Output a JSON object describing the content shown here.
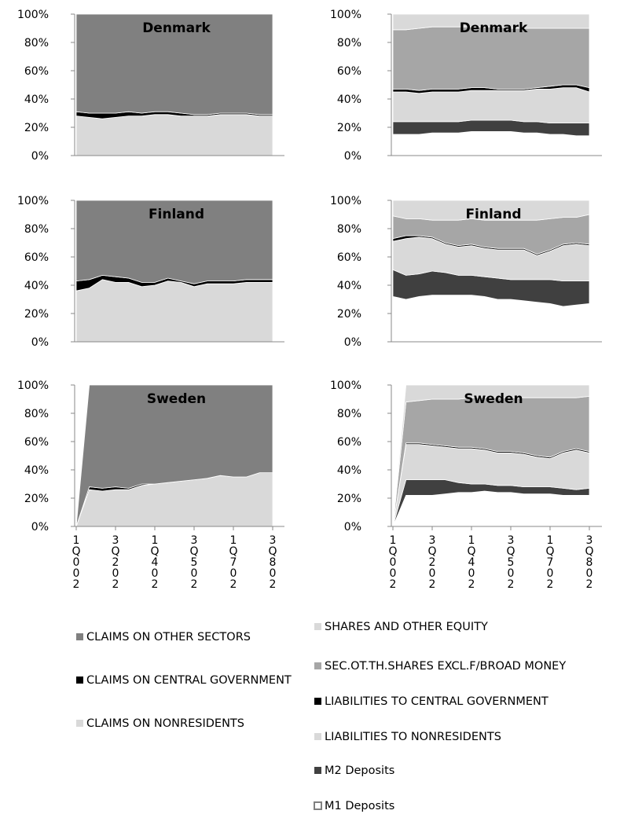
{
  "chart_data": [
    {
      "type": "area",
      "title": "Denmark",
      "ylim": [
        0,
        100
      ],
      "yticks": [
        {
          "value": 0,
          "label": "0%"
        },
        {
          "value": 20,
          "label": "20%"
        },
        {
          "value": 40,
          "label": "40%"
        },
        {
          "value": 60,
          "label": "60%"
        },
        {
          "value": 80,
          "label": "80%"
        },
        {
          "value": 100,
          "label": "100%"
        }
      ],
      "series": [
        {
          "values": [
            28,
            27,
            26,
            27,
            28,
            28,
            29,
            29,
            28,
            28,
            28,
            29,
            29,
            29,
            28,
            28
          ]
        },
        {
          "values": [
            3,
            3,
            4,
            3,
            3,
            2,
            2,
            2,
            2,
            1,
            1,
            1,
            1,
            1,
            1,
            1
          ]
        },
        {
          "values": [
            69,
            70,
            70,
            70,
            69,
            70,
            69,
            69,
            70,
            71,
            71,
            70,
            70,
            70,
            71,
            71
          ]
        }
      ]
    },
    {
      "type": "area",
      "title": "Denmark",
      "ylim": [
        0,
        100
      ],
      "yticks": [
        {
          "value": 0,
          "label": "0%"
        },
        {
          "value": 20,
          "label": "20%"
        },
        {
          "value": 40,
          "label": "40%"
        },
        {
          "value": 60,
          "label": "60%"
        },
        {
          "value": 80,
          "label": "80%"
        },
        {
          "value": 100,
          "label": "100%"
        }
      ],
      "series": [
        {
          "values": [
            15,
            15,
            15,
            16,
            16,
            16,
            17,
            17,
            17,
            17,
            16,
            16,
            15,
            15,
            14,
            14
          ]
        },
        {
          "values": [
            9,
            9,
            9,
            8,
            8,
            8,
            8,
            8,
            8,
            8,
            8,
            8,
            8,
            8,
            9,
            9
          ]
        },
        {
          "values": [
            21,
            21,
            20,
            21,
            21,
            21,
            21,
            21,
            21,
            21,
            22,
            23,
            24,
            25,
            25,
            22
          ]
        },
        {
          "values": [
            2,
            2,
            2,
            2,
            2,
            2,
            2,
            2,
            1,
            1,
            1,
            1,
            2,
            2,
            2,
            3
          ]
        },
        {
          "values": [
            42,
            42,
            44,
            44,
            44,
            44,
            43,
            43,
            44,
            43,
            43,
            42,
            41,
            40,
            40,
            42
          ]
        },
        {
          "values": [
            11,
            11,
            10,
            9,
            9,
            9,
            9,
            9,
            9,
            10,
            10,
            10,
            10,
            10,
            10,
            10
          ]
        }
      ]
    },
    {
      "type": "area",
      "title": "Finland",
      "ylim": [
        0,
        100
      ],
      "yticks": [
        {
          "value": 0,
          "label": "0%"
        },
        {
          "value": 20,
          "label": "20%"
        },
        {
          "value": 40,
          "label": "40%"
        },
        {
          "value": 60,
          "label": "60%"
        },
        {
          "value": 80,
          "label": "80%"
        },
        {
          "value": 100,
          "label": "100%"
        }
      ],
      "series": [
        {
          "values": [
            36,
            38,
            44,
            42,
            42,
            39,
            40,
            43,
            42,
            39,
            41,
            41,
            41,
            42,
            42,
            42
          ]
        },
        {
          "values": [
            7,
            6,
            3,
            4,
            3,
            3,
            2,
            2,
            1,
            2,
            2,
            2,
            2,
            2,
            2,
            2
          ]
        },
        {
          "values": [
            57,
            56,
            53,
            54,
            55,
            58,
            58,
            55,
            57,
            59,
            57,
            57,
            57,
            56,
            56,
            56
          ]
        }
      ]
    },
    {
      "type": "area",
      "title": "Finland",
      "ylim": [
        0,
        100
      ],
      "yticks": [
        {
          "value": 0,
          "label": "0%"
        },
        {
          "value": 20,
          "label": "20%"
        },
        {
          "value": 40,
          "label": "40%"
        },
        {
          "value": 60,
          "label": "60%"
        },
        {
          "value": 80,
          "label": "80%"
        },
        {
          "value": 100,
          "label": "100%"
        }
      ],
      "series": [
        {
          "values": [
            32,
            30,
            32,
            33,
            33,
            33,
            33,
            32,
            30,
            30,
            29,
            28,
            27,
            25,
            26,
            27
          ]
        },
        {
          "values": [
            19,
            17,
            16,
            17,
            16,
            14,
            14,
            14,
            15,
            14,
            15,
            16,
            17,
            18,
            17,
            16
          ]
        },
        {
          "values": [
            20,
            26,
            26,
            23,
            20,
            20,
            21,
            20,
            20,
            21,
            21,
            17,
            20,
            25,
            26,
            25
          ]
        },
        {
          "values": [
            2,
            2,
            1,
            1,
            1,
            1,
            1,
            1,
            1,
            1,
            1,
            1,
            1,
            1,
            1,
            1
          ]
        },
        {
          "values": [
            16,
            12,
            12,
            12,
            16,
            18,
            18,
            19,
            20,
            20,
            20,
            24,
            22,
            19,
            18,
            21
          ]
        },
        {
          "values": [
            11,
            13,
            13,
            14,
            14,
            14,
            13,
            14,
            14,
            14,
            14,
            14,
            13,
            12,
            12,
            10
          ]
        }
      ]
    },
    {
      "type": "area",
      "title": "Sweden",
      "ylim": [
        0,
        100
      ],
      "yticks": [
        {
          "value": 0,
          "label": "0%"
        },
        {
          "value": 20,
          "label": "20%"
        },
        {
          "value": 40,
          "label": "40%"
        },
        {
          "value": 60,
          "label": "60%"
        },
        {
          "value": 80,
          "label": "80%"
        },
        {
          "value": 100,
          "label": "100%"
        }
      ],
      "categories": [
        "1Q002",
        null,
        null,
        "3Q202",
        null,
        null,
        "1Q402",
        null,
        null,
        "3Q502",
        null,
        null,
        "1Q702",
        null,
        null,
        "3Q802"
      ],
      "series": [
        {
          "values": [
            0,
            26,
            25,
            26,
            26,
            29,
            30,
            31,
            32,
            33,
            34,
            36,
            35,
            35,
            38,
            38
          ]
        },
        {
          "values": [
            0,
            2,
            2,
            2,
            1,
            1,
            0,
            0,
            0,
            0,
            0,
            0,
            0,
            0,
            0,
            0
          ]
        },
        {
          "values": [
            0,
            72,
            73,
            72,
            73,
            70,
            70,
            69,
            68,
            67,
            66,
            64,
            65,
            65,
            62,
            62
          ]
        }
      ]
    },
    {
      "type": "area",
      "title": "Sweden",
      "ylim": [
        0,
        100
      ],
      "yticks": [
        {
          "value": 0,
          "label": "0%"
        },
        {
          "value": 20,
          "label": "20%"
        },
        {
          "value": 40,
          "label": "40%"
        },
        {
          "value": 60,
          "label": "60%"
        },
        {
          "value": 80,
          "label": "80%"
        },
        {
          "value": 100,
          "label": "100%"
        }
      ],
      "categories": [
        "1Q002",
        null,
        null,
        "3Q202",
        null,
        null,
        "1Q402",
        null,
        null,
        "3Q502",
        null,
        null,
        "1Q702",
        null,
        null,
        "3Q802"
      ],
      "series": [
        {
          "values": [
            0,
            22,
            22,
            22,
            23,
            24,
            24,
            25,
            24,
            24,
            23,
            23,
            23,
            22,
            22,
            22
          ]
        },
        {
          "values": [
            0,
            11,
            11,
            11,
            10,
            7,
            6,
            5,
            5,
            5,
            5,
            5,
            5,
            5,
            4,
            5
          ]
        },
        {
          "values": [
            0,
            25,
            25,
            24,
            23,
            24,
            25,
            24,
            23,
            23,
            23,
            21,
            20,
            25,
            28,
            25
          ]
        },
        {
          "values": [
            0,
            1,
            1,
            1,
            1,
            1,
            1,
            1,
            1,
            1,
            1,
            1,
            1,
            1,
            1,
            1
          ]
        },
        {
          "values": [
            0,
            29,
            30,
            32,
            33,
            34,
            35,
            36,
            38,
            38,
            39,
            41,
            42,
            38,
            36,
            39
          ]
        },
        {
          "values": [
            0,
            12,
            11,
            10,
            10,
            10,
            9,
            9,
            9,
            9,
            9,
            9,
            9,
            9,
            9,
            8
          ]
        }
      ]
    }
  ],
  "legends": [
    {
      "items": [
        {
          "name": "CLAIMS ON OTHER SECTORS",
          "color": "#808080"
        },
        {
          "name": "CLAIMS ON CENTRAL GOVERNMENT",
          "color": "#000000"
        },
        {
          "name": "CLAIMS ON NONRESIDENTS",
          "color": "#d9d9d9"
        }
      ]
    },
    {
      "items": [
        {
          "name": "SHARES AND OTHER EQUITY",
          "color": "#d9d9d9"
        },
        {
          "name": "SEC.OT.TH.SHARES EXCL.F/BROAD MONEY",
          "color": "#a6a6a6"
        },
        {
          "name": "LIABILITIES TO CENTRAL GOVERNMENT",
          "color": "#000000"
        },
        {
          "name": "LIABILITIES TO NONRESIDENTS",
          "color": "#d9d9d9"
        },
        {
          "name": "M2 Deposits",
          "color": "#404040"
        },
        {
          "name": "M1 Deposits",
          "color": "#ffffff"
        }
      ]
    }
  ]
}
